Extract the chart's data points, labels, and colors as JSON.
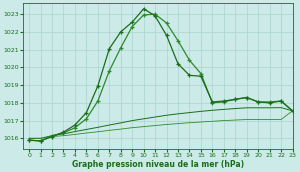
{
  "title": "Graphe pression niveau de la mer (hPa)",
  "background_color": "#cceae7",
  "grid_color": "#aad4d0",
  "line_color1": "#1a6e1a",
  "line_color2": "#2d8a2d",
  "xlim": [
    -0.5,
    23
  ],
  "ylim": [
    1015.4,
    1023.6
  ],
  "yticks": [
    1016,
    1017,
    1018,
    1019,
    1020,
    1021,
    1022,
    1023
  ],
  "xticks": [
    0,
    1,
    2,
    3,
    4,
    5,
    6,
    7,
    8,
    9,
    10,
    11,
    12,
    13,
    14,
    15,
    16,
    17,
    18,
    19,
    20,
    21,
    22,
    23
  ],
  "s1_x": [
    0,
    1,
    2,
    3,
    4,
    5,
    6,
    7,
    8,
    9,
    10,
    11,
    12,
    13,
    14,
    15,
    16,
    17,
    18,
    19,
    20,
    21,
    22,
    23
  ],
  "s1_y": [
    1015.9,
    1015.85,
    1016.1,
    1016.35,
    1016.75,
    1017.45,
    1018.95,
    1021.05,
    1022.0,
    1022.55,
    1023.3,
    1022.9,
    1021.8,
    1020.2,
    1019.55,
    1019.5,
    1018.05,
    1018.1,
    1018.2,
    1018.3,
    1018.05,
    1018.0,
    1018.1,
    1017.55
  ],
  "s2_x": [
    0,
    1,
    2,
    3,
    4,
    5,
    6,
    7,
    8,
    9,
    10,
    11,
    12,
    13,
    14,
    15,
    16,
    17,
    18,
    19,
    20,
    21,
    22,
    23
  ],
  "s2_y": [
    1015.9,
    1015.85,
    1016.15,
    1016.3,
    1016.6,
    1017.1,
    1018.1,
    1019.8,
    1021.1,
    1022.3,
    1022.95,
    1023.0,
    1022.5,
    1021.5,
    1020.4,
    1019.65,
    1018.0,
    1018.05,
    1018.2,
    1018.3,
    1018.05,
    1018.05,
    1018.1,
    1017.55
  ],
  "s3_x": [
    0,
    1,
    2,
    3,
    4,
    5,
    6,
    7,
    8,
    9,
    10,
    11,
    12,
    13,
    14,
    15,
    16,
    17,
    18,
    19,
    20,
    21,
    22,
    23
  ],
  "s3_y": [
    1016.0,
    1016.0,
    1016.15,
    1016.25,
    1016.38,
    1016.5,
    1016.62,
    1016.75,
    1016.87,
    1017.0,
    1017.1,
    1017.2,
    1017.3,
    1017.38,
    1017.45,
    1017.52,
    1017.58,
    1017.63,
    1017.68,
    1017.72,
    1017.72,
    1017.72,
    1017.73,
    1017.55
  ],
  "s4_x": [
    0,
    1,
    2,
    3,
    4,
    5,
    6,
    7,
    8,
    9,
    10,
    11,
    12,
    13,
    14,
    15,
    16,
    17,
    18,
    19,
    20,
    21,
    22,
    23
  ],
  "s4_y": [
    1016.0,
    1016.0,
    1016.1,
    1016.15,
    1016.22,
    1016.3,
    1016.37,
    1016.45,
    1016.52,
    1016.6,
    1016.66,
    1016.72,
    1016.78,
    1016.83,
    1016.88,
    1016.92,
    1016.96,
    1017.0,
    1017.03,
    1017.06,
    1017.06,
    1017.06,
    1017.06,
    1017.55
  ]
}
